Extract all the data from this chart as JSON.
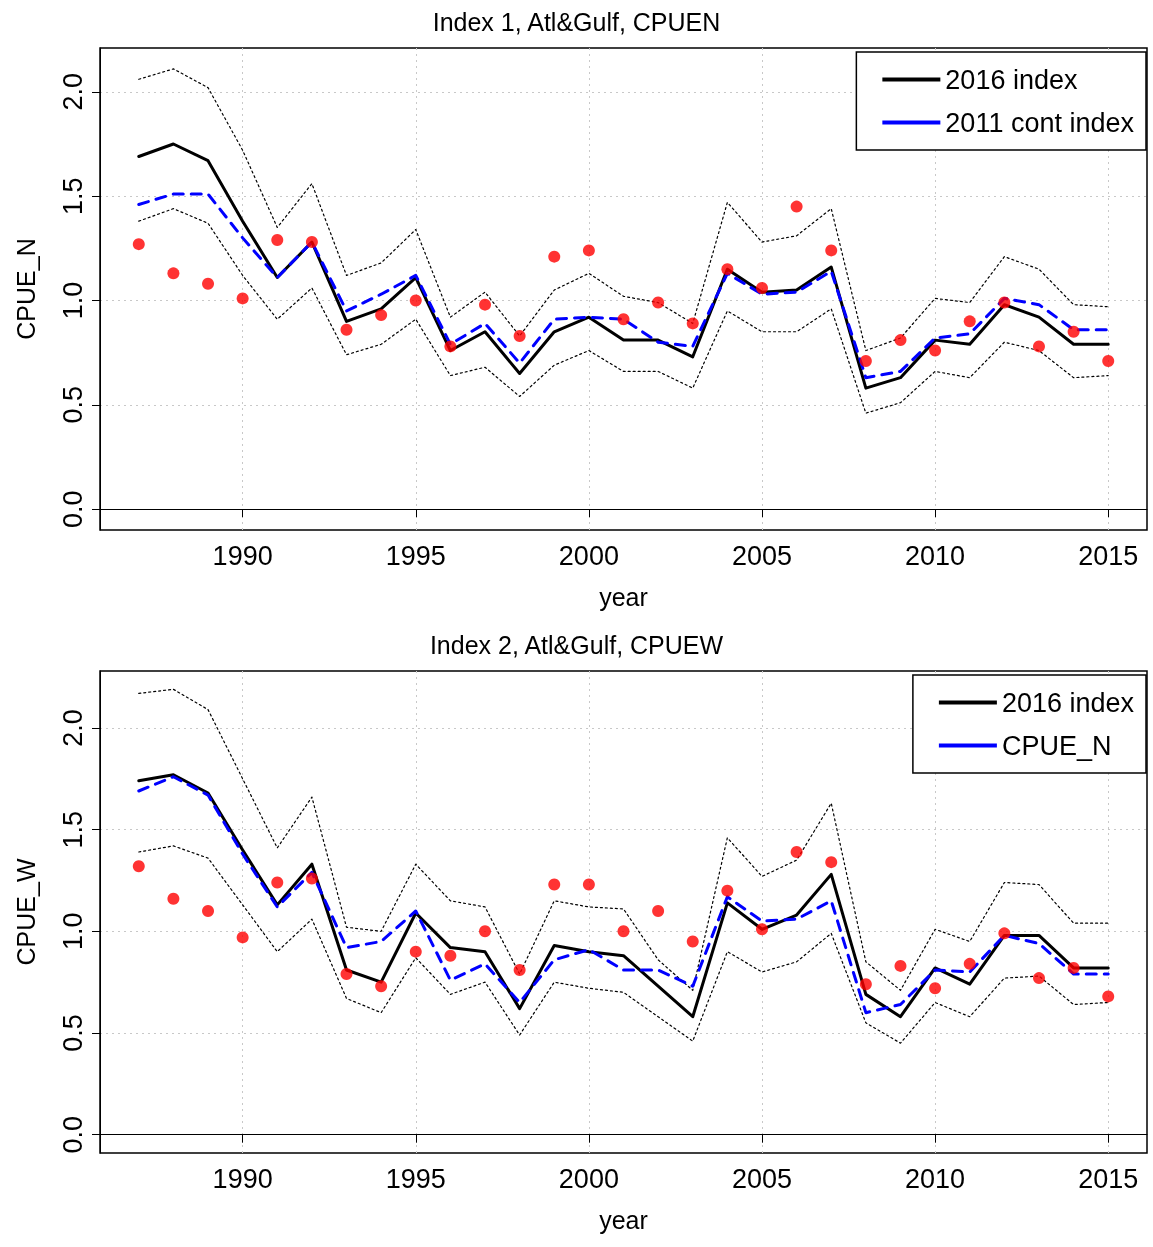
{
  "chart_data": [
    {
      "type": "line",
      "title": "Index 1, Atl&Gulf, CPUEN",
      "xlabel": "year",
      "ylabel": "CPUE_N",
      "x": [
        1987,
        1988,
        1989,
        1990,
        1991,
        1992,
        1993,
        1994,
        1995,
        1996,
        1997,
        1998,
        1999,
        2000,
        2001,
        2002,
        2003,
        2004,
        2005,
        2006,
        2007,
        2008,
        2009,
        2010,
        2011,
        2012,
        2013,
        2014,
        2015
      ],
      "xlim": [
        1985.88,
        2016.12
      ],
      "xticks": [
        1990,
        1995,
        2000,
        2005,
        2010,
        2015
      ],
      "ylim": [
        -0.1,
        2.21
      ],
      "yticks": [
        {
          "value": 0,
          "label": "0.0"
        },
        {
          "value": 0.5,
          "label": "0.5"
        },
        {
          "value": 1,
          "label": "1.0"
        },
        {
          "value": 1.5,
          "label": "1.5"
        },
        {
          "value": 2,
          "label": "2.0"
        }
      ],
      "grid": true,
      "legend": "top right",
      "series": [
        {
          "color": "#000000",
          "line_style": "dotted",
          "marker": "none",
          "values": [
            2.06,
            2.11,
            2.02,
            1.72,
            1.35,
            1.56,
            1.12,
            1.18,
            1.34,
            0.92,
            1.04,
            0.83,
            1.05,
            1.13,
            1.02,
            0.99,
            0.89,
            1.47,
            1.28,
            1.31,
            1.44,
            0.76,
            0.82,
            1.01,
            0.99,
            1.21,
            1.15,
            0.98,
            0.97
          ]
        },
        {
          "color": "#000000",
          "line_style": "dotted",
          "marker": "none",
          "values": [
            1.38,
            1.44,
            1.37,
            1.12,
            0.91,
            1.06,
            0.74,
            0.79,
            0.91,
            0.64,
            0.68,
            0.54,
            0.69,
            0.76,
            0.66,
            0.66,
            0.58,
            0.95,
            0.85,
            0.85,
            0.96,
            0.46,
            0.51,
            0.66,
            0.63,
            0.8,
            0.76,
            0.63,
            0.64
          ]
        },
        {
          "type": "scatter",
          "color": "#ff0000",
          "marker": "circle",
          "values": [
            1.27,
            1.13,
            1.08,
            1.01,
            1.29,
            1.28,
            0.86,
            0.93,
            1.0,
            0.78,
            0.98,
            0.83,
            1.21,
            1.24,
            0.91,
            0.99,
            0.89,
            1.15,
            1.06,
            1.45,
            1.24,
            0.71,
            0.81,
            0.76,
            0.9,
            0.99,
            0.78,
            0.85,
            0.71
          ]
        },
        {
          "name": "2016 index",
          "color": "#000000",
          "line_style": "solid",
          "marker": "none",
          "values": [
            1.69,
            1.75,
            1.67,
            1.38,
            1.11,
            1.28,
            0.9,
            0.96,
            1.11,
            0.76,
            0.85,
            0.65,
            0.85,
            0.92,
            0.81,
            0.81,
            0.73,
            1.15,
            1.04,
            1.05,
            1.16,
            0.58,
            0.63,
            0.81,
            0.79,
            0.98,
            0.92,
            0.79,
            0.79
          ]
        },
        {
          "name": "2011 cont index",
          "color": "#0000ff",
          "line_style": "dashed",
          "marker": "none",
          "values": [
            1.46,
            1.51,
            1.51,
            1.3,
            1.11,
            1.28,
            0.95,
            1.03,
            1.12,
            0.79,
            0.89,
            0.7,
            0.91,
            0.92,
            0.91,
            0.8,
            0.78,
            1.13,
            1.03,
            1.04,
            1.14,
            0.63,
            0.66,
            0.82,
            0.84,
            1.01,
            0.98,
            0.86,
            0.86
          ]
        }
      ]
    },
    {
      "type": "line",
      "title": "Index 2, Atl&Gulf, CPUEW",
      "xlabel": "year",
      "ylabel": "CPUE_W",
      "x": [
        1987,
        1988,
        1989,
        1990,
        1991,
        1992,
        1993,
        1994,
        1995,
        1996,
        1997,
        1998,
        1999,
        2000,
        2001,
        2002,
        2003,
        2004,
        2005,
        2006,
        2007,
        2008,
        2009,
        2010,
        2011,
        2012,
        2013,
        2014,
        2015
      ],
      "xlim": [
        1985.88,
        2016.12
      ],
      "xticks": [
        1990,
        1995,
        2000,
        2005,
        2010,
        2015
      ],
      "ylim": [
        -0.09,
        2.28
      ],
      "yticks": [
        {
          "value": 0,
          "label": "0.0"
        },
        {
          "value": 0.5,
          "label": "0.5"
        },
        {
          "value": 1,
          "label": "1.0"
        },
        {
          "value": 1.5,
          "label": "1.5"
        },
        {
          "value": 2,
          "label": "2.0"
        }
      ],
      "grid": true,
      "legend": "top right",
      "series": [
        {
          "color": "#000000",
          "line_style": "dotted",
          "marker": "none",
          "values": [
            2.17,
            2.19,
            2.09,
            1.75,
            1.41,
            1.66,
            1.02,
            1.0,
            1.33,
            1.15,
            1.12,
            0.79,
            1.15,
            1.12,
            1.11,
            0.86,
            0.71,
            1.46,
            1.27,
            1.35,
            1.63,
            0.85,
            0.71,
            1.01,
            0.95,
            1.24,
            1.23,
            1.04,
            1.04
          ]
        },
        {
          "color": "#000000",
          "line_style": "dotted",
          "marker": "none",
          "values": [
            1.39,
            1.42,
            1.36,
            1.13,
            0.9,
            1.06,
            0.67,
            0.6,
            0.87,
            0.69,
            0.75,
            0.49,
            0.75,
            0.72,
            0.7,
            0.58,
            0.46,
            0.9,
            0.8,
            0.85,
            0.99,
            0.55,
            0.45,
            0.65,
            0.58,
            0.77,
            0.78,
            0.64,
            0.65
          ]
        },
        {
          "type": "scatter",
          "color": "#ff0000",
          "marker": "circle",
          "values": [
            1.32,
            1.16,
            1.1,
            0.97,
            1.24,
            1.26,
            0.79,
            0.73,
            0.9,
            0.88,
            1.0,
            0.81,
            1.23,
            1.23,
            1.0,
            1.1,
            0.95,
            1.2,
            1.01,
            1.39,
            1.34,
            0.74,
            0.83,
            0.72,
            0.84,
            0.99,
            0.77,
            0.82,
            0.68
          ]
        },
        {
          "name": "2016 index",
          "color": "#000000",
          "line_style": "solid",
          "marker": "none",
          "values": [
            1.74,
            1.77,
            1.68,
            1.4,
            1.13,
            1.33,
            0.81,
            0.75,
            1.09,
            0.92,
            0.9,
            0.62,
            0.93,
            0.9,
            0.88,
            0.73,
            0.58,
            1.14,
            1.01,
            1.08,
            1.28,
            0.69,
            0.58,
            0.82,
            0.74,
            0.98,
            0.98,
            0.82,
            0.82
          ]
        },
        {
          "name": "CPUE_N",
          "color": "#0000ff",
          "line_style": "dashed",
          "marker": "none",
          "values": [
            1.69,
            1.76,
            1.67,
            1.38,
            1.12,
            1.29,
            0.92,
            0.95,
            1.1,
            0.76,
            0.84,
            0.65,
            0.86,
            0.91,
            0.81,
            0.81,
            0.73,
            1.17,
            1.05,
            1.06,
            1.15,
            0.6,
            0.64,
            0.81,
            0.8,
            0.98,
            0.94,
            0.79,
            0.79
          ]
        }
      ]
    }
  ]
}
